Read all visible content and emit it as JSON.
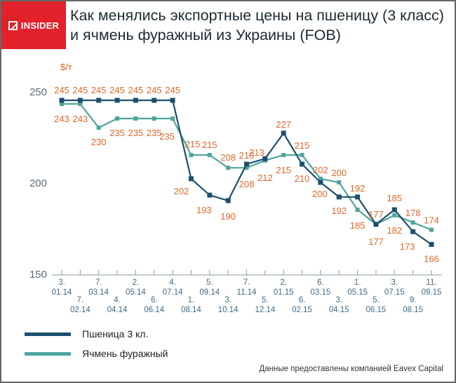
{
  "logo": {
    "text": "INSIDER",
    "icon": "slashed-square-icon",
    "color": "#e1222b"
  },
  "header": {
    "title": "Как менялись экспортные цены на пшеницу (3 класс) и ячмень фуражный из Украины (FOB)"
  },
  "source": "Данные предоставлены компанией Eavex Capital",
  "chart_data": {
    "type": "line",
    "title": "Как менялись экспортные цены на пшеницу (3 класс) и ячмень фуражный из Украины (FOB)",
    "ylabel": "$/т",
    "ylim": [
      150,
      250
    ],
    "yticks": [
      "150",
      "200",
      "250"
    ],
    "grid": false,
    "legend": "bottom-left",
    "categories": [
      [
        "3.",
        "01.14"
      ],
      [
        "7.",
        "02.14"
      ],
      [
        "7.",
        "03.14"
      ],
      [
        "4.",
        "04.14"
      ],
      [
        "2.",
        "05.14"
      ],
      [
        "6.",
        "06.14"
      ],
      [
        "4.",
        "07.14"
      ],
      [
        "1.",
        "08.14"
      ],
      [
        "5.",
        "09.14"
      ],
      [
        "3.",
        "10.14"
      ],
      [
        "7.",
        "11.14"
      ],
      [
        "5.",
        "12.14"
      ],
      [
        "2.",
        "01.15"
      ],
      [
        "6.",
        "02.15"
      ],
      [
        "6.",
        "03.15"
      ],
      [
        "3.",
        "04.15"
      ],
      [
        "1.",
        "05.15"
      ],
      [
        "5.",
        "06.15"
      ],
      [
        "3.",
        "07.15"
      ],
      [
        "9.",
        "08.15"
      ],
      [
        "11.",
        "09.15"
      ]
    ],
    "series": [
      {
        "name": "Пшеница 3 кл.",
        "color": "#1d4f6e",
        "values": [
          245,
          245,
          245,
          245,
          245,
          245,
          245,
          202,
          193,
          190,
          210,
          213,
          227,
          210,
          200,
          192,
          192,
          177,
          185,
          173,
          166
        ]
      },
      {
        "name": "Ячмень фуражный",
        "color": "#4fa59b",
        "values": [
          243,
          243,
          230,
          235,
          235,
          235,
          235,
          215,
          215,
          208,
          208,
          212,
          215,
          215,
          202,
          200,
          185,
          177,
          182,
          178,
          174
        ]
      }
    ],
    "label_color": "#e0672a",
    "axis_color": "#8a9aa6"
  }
}
